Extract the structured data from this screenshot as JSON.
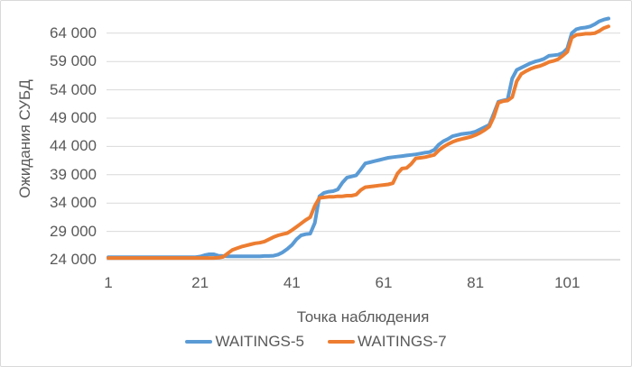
{
  "chart_data": {
    "type": "line",
    "title": "",
    "xlabel": "Точка наблюдения",
    "ylabel": "Ожидания СУБД",
    "x_ticks": [
      1,
      21,
      41,
      61,
      81,
      101
    ],
    "y_tick_values": [
      24000,
      29000,
      34000,
      39000,
      44000,
      49000,
      54000,
      59000,
      64000
    ],
    "y_tick_labels": [
      "24 000",
      "29 000",
      "34 000",
      "39 000",
      "44 000",
      "49 000",
      "54 000",
      "59 000",
      "64 000"
    ],
    "xlim": [
      1,
      110
    ],
    "ylim": [
      24000,
      67500
    ],
    "grid": true,
    "legend_position": "bottom",
    "series": [
      {
        "name": "WAITINGS-5",
        "color": "#5B9BD5",
        "values": [
          24450,
          24450,
          24450,
          24450,
          24450,
          24450,
          24450,
          24450,
          24450,
          24450,
          24450,
          24450,
          24450,
          24450,
          24450,
          24450,
          24450,
          24450,
          24450,
          24450,
          24550,
          24800,
          24950,
          24950,
          24700,
          24650,
          24600,
          24600,
          24600,
          24600,
          24600,
          24600,
          24600,
          24600,
          24650,
          24650,
          24700,
          24900,
          25300,
          25900,
          26600,
          27600,
          28300,
          28500,
          28600,
          30500,
          35200,
          35800,
          36000,
          36100,
          36400,
          37600,
          38500,
          38700,
          38900,
          39900,
          41000,
          41200,
          41400,
          41600,
          41800,
          42000,
          42100,
          42200,
          42300,
          42400,
          42500,
          42600,
          42750,
          42900,
          43000,
          43400,
          44300,
          44900,
          45300,
          45800,
          46000,
          46200,
          46300,
          46400,
          46600,
          47000,
          47400,
          47800,
          49800,
          51900,
          52100,
          52300,
          56000,
          57500,
          57900,
          58300,
          58700,
          59000,
          59200,
          59500,
          60000,
          60100,
          60200,
          60500,
          61300,
          64000,
          64700,
          64900,
          65000,
          65200,
          65600,
          66100,
          66400,
          66600
        ]
      },
      {
        "name": "WAITINGS-7",
        "color": "#ED7D31",
        "values": [
          24300,
          24300,
          24300,
          24300,
          24300,
          24300,
          24300,
          24300,
          24300,
          24300,
          24300,
          24300,
          24300,
          24300,
          24300,
          24300,
          24300,
          24300,
          24300,
          24300,
          24300,
          24300,
          24300,
          24300,
          24350,
          24500,
          25100,
          25700,
          26000,
          26300,
          26500,
          26700,
          26900,
          27000,
          27200,
          27600,
          28000,
          28300,
          28500,
          28700,
          29200,
          29800,
          30400,
          31000,
          31500,
          33500,
          34900,
          35000,
          35100,
          35100,
          35200,
          35200,
          35300,
          35300,
          35500,
          36300,
          36800,
          36900,
          37000,
          37100,
          37200,
          37300,
          37500,
          39200,
          40100,
          40200,
          40900,
          41900,
          42000,
          42100,
          42300,
          42500,
          43300,
          43900,
          44400,
          44800,
          45100,
          45300,
          45500,
          45700,
          46000,
          46400,
          46900,
          47500,
          49200,
          51700,
          52000,
          52100,
          52700,
          55500,
          56800,
          57300,
          57700,
          58000,
          58200,
          58500,
          58900,
          59100,
          59400,
          60000,
          60700,
          63200,
          63700,
          63800,
          63900,
          63900,
          64000,
          64400,
          64900,
          65200
        ]
      }
    ]
  },
  "colors": {
    "text": "#595959",
    "gridline": "#D9D9D9",
    "axis_line": "#BFBFBF",
    "background": "#FFFFFF",
    "border": "#D9D9D9"
  }
}
